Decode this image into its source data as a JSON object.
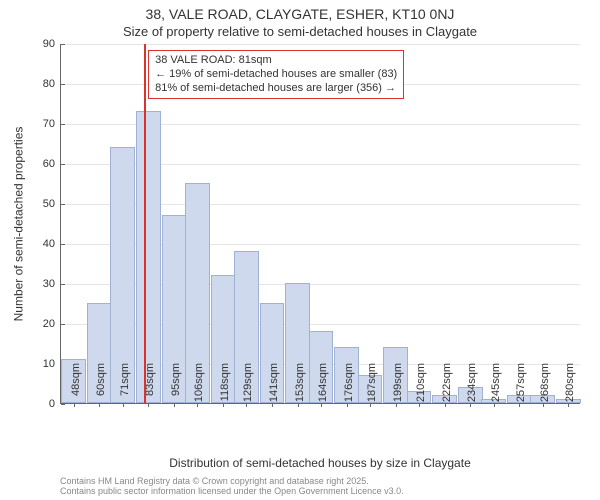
{
  "titles": {
    "line1": "38, VALE ROAD, CLAYGATE, ESHER, KT10 0NJ",
    "line2": "Size of property relative to semi-detached houses in Claygate"
  },
  "axes": {
    "ylabel": "Number of semi-detached properties",
    "xlabel": "Distribution of semi-detached houses by size in Claygate",
    "ylim": [
      0,
      90
    ],
    "ytick_step": 10,
    "yticks": [
      0,
      10,
      20,
      30,
      40,
      50,
      60,
      70,
      80,
      90
    ],
    "xlim": [
      42,
      286
    ]
  },
  "histogram": {
    "type": "histogram",
    "bin_width": 11.6,
    "bar_fill": "#cfd9ed",
    "bar_stroke": "#9fb2d6",
    "bins": [
      {
        "label": "48sqm",
        "x": 48,
        "count": 11
      },
      {
        "label": "60sqm",
        "x": 60,
        "count": 25
      },
      {
        "label": "71sqm",
        "x": 71,
        "count": 64
      },
      {
        "label": "83sqm",
        "x": 83,
        "count": 73
      },
      {
        "label": "95sqm",
        "x": 95,
        "count": 47
      },
      {
        "label": "106sqm",
        "x": 106,
        "count": 55
      },
      {
        "label": "118sqm",
        "x": 118,
        "count": 32
      },
      {
        "label": "129sqm",
        "x": 129,
        "count": 38
      },
      {
        "label": "141sqm",
        "x": 141,
        "count": 25
      },
      {
        "label": "153sqm",
        "x": 153,
        "count": 30
      },
      {
        "label": "164sqm",
        "x": 164,
        "count": 18
      },
      {
        "label": "176sqm",
        "x": 176,
        "count": 14
      },
      {
        "label": "187sqm",
        "x": 187,
        "count": 7
      },
      {
        "label": "199sqm",
        "x": 199,
        "count": 14
      },
      {
        "label": "210sqm",
        "x": 210,
        "count": 3
      },
      {
        "label": "222sqm",
        "x": 222,
        "count": 2
      },
      {
        "label": "234sqm",
        "x": 234,
        "count": 4
      },
      {
        "label": "245sqm",
        "x": 245,
        "count": 1
      },
      {
        "label": "257sqm",
        "x": 257,
        "count": 2
      },
      {
        "label": "268sqm",
        "x": 268,
        "count": 2
      },
      {
        "label": "280sqm",
        "x": 280,
        "count": 1
      }
    ]
  },
  "marker": {
    "x_value": 81,
    "color": "#d9332e"
  },
  "annotation": {
    "line1": "38 VALE ROAD: 81sqm",
    "line2": "← 19% of semi-detached houses are smaller (83)",
    "line3": "81% of semi-detached houses are larger (356) →",
    "border_color": "#d9332e"
  },
  "attribution": {
    "line1": "Contains HM Land Registry data © Crown copyright and database right 2025.",
    "line2": "Contains public sector information licensed under the Open Government Licence v3.0."
  },
  "style": {
    "grid_color": "#e5e5e5",
    "axis_color": "#666666",
    "text_color": "#333333",
    "background": "#ffffff",
    "title_fontsize": 14,
    "subtitle_fontsize": 13,
    "label_fontsize": 12,
    "tick_fontsize": 11
  }
}
